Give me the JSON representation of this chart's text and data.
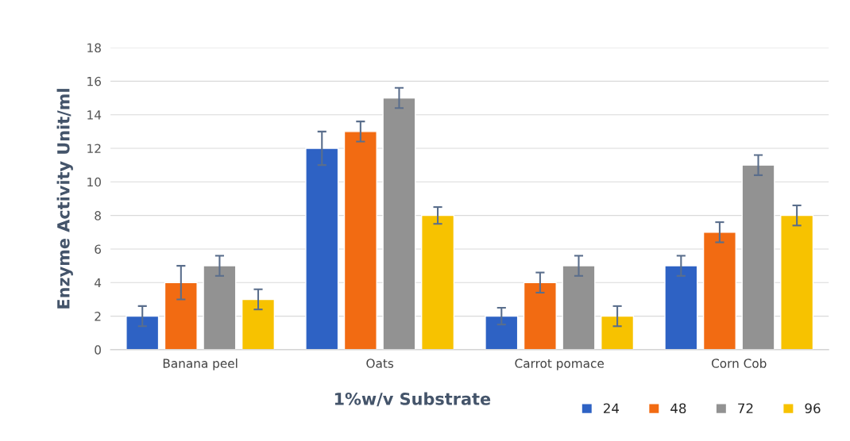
{
  "chart_data": {
    "type": "bar",
    "xlabel": "1%w/v Substrate",
    "ylabel": "Enzyme Activity Unit/ml",
    "categories": [
      "Banana peel",
      "Oats",
      "Carrot pomace",
      "Corn Cob"
    ],
    "series": [
      {
        "name": "24",
        "color": "#2e62c4",
        "values": [
          2,
          12,
          2,
          5
        ],
        "errors": [
          0.6,
          1,
          0.5,
          0.6
        ]
      },
      {
        "name": "48",
        "color": "#f26b12",
        "values": [
          4,
          13,
          4,
          7
        ],
        "errors": [
          1,
          0.6,
          0.6,
          0.6
        ]
      },
      {
        "name": "72",
        "color": "#929292",
        "values": [
          5,
          15,
          5,
          11
        ],
        "errors": [
          0.6,
          0.6,
          0.6,
          0.6
        ]
      },
      {
        "name": "96",
        "color": "#f7c200",
        "values": [
          3,
          8,
          2,
          8
        ],
        "errors": [
          0.6,
          0.5,
          0.6,
          0.6
        ]
      }
    ],
    "ylim": [
      0,
      18
    ],
    "yticks": [
      0,
      2,
      4,
      6,
      8,
      10,
      12,
      14,
      16,
      18
    ],
    "grid": "y",
    "legend": "bottom right"
  }
}
